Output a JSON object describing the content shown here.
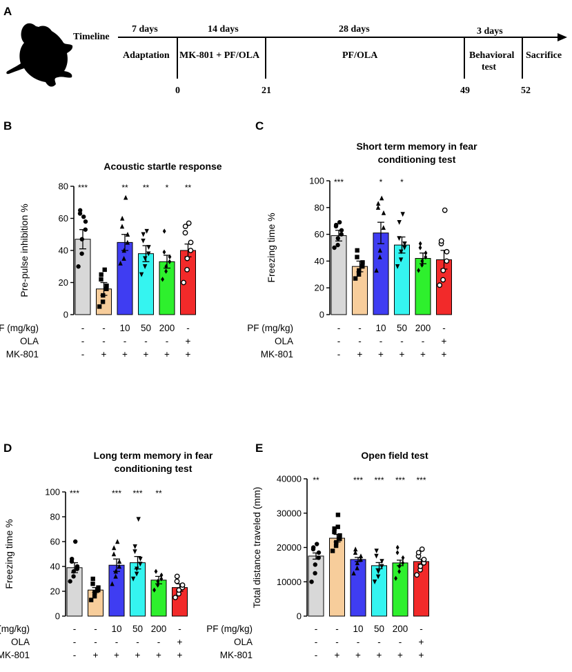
{
  "timeline": {
    "panel_label": "A",
    "axis_label": "Timeline",
    "durations": [
      "7   days",
      "14 days",
      "28 days",
      "3 days"
    ],
    "phases": [
      "Adaptation",
      "MK-801 + PF/OLA",
      "PF/OLA",
      "Behavioral",
      "test",
      "Sacrifice"
    ],
    "day_marks": [
      "0",
      "21",
      "49",
      "52"
    ]
  },
  "colors": {
    "group_fills": [
      "#d8d8d8",
      "#f7cd9b",
      "#3f3df2",
      "#35f4f0",
      "#2ef02d",
      "#f22a2a"
    ],
    "ink": "#000000"
  },
  "treatment_rows": {
    "labels": [
      "PF (mg/kg)",
      "OLA",
      "MK-801"
    ],
    "values": [
      [
        "-",
        "-",
        "10",
        "50",
        "200",
        "-"
      ],
      [
        "-",
        "-",
        "-",
        "-",
        "-",
        "+"
      ],
      [
        "-",
        "+",
        "+",
        "+",
        "+",
        "+"
      ]
    ]
  },
  "chart_data": [
    {
      "panel": "B",
      "type": "bar",
      "title": "Acoustic startle response",
      "ylabel": "Pre-pulse inhibition %",
      "ylim": [
        0,
        80
      ],
      "yticks": [
        "0",
        "20",
        "40",
        "60",
        "80"
      ],
      "values": [
        47,
        16,
        45,
        38,
        33,
        40
      ],
      "errors": [
        6,
        4,
        5,
        5,
        4,
        4
      ],
      "significance": [
        "***",
        "",
        "**",
        "**",
        "*",
        "**"
      ],
      "points": [
        [
          30,
          38,
          47,
          53,
          58,
          63,
          65,
          61
        ],
        [
          5,
          8,
          12,
          16,
          18,
          22,
          25,
          28
        ],
        [
          32,
          35,
          40,
          45,
          50,
          55,
          60,
          73
        ],
        [
          25,
          30,
          35,
          38,
          42,
          46,
          50,
          52
        ],
        [
          22,
          27,
          30,
          33,
          36,
          39,
          52
        ],
        [
          20,
          28,
          35,
          40,
          45,
          51,
          55,
          57
        ]
      ]
    },
    {
      "panel": "C",
      "type": "bar",
      "title": "Short term memory in fear",
      "title2": "conditioning test",
      "ylabel": "Freezing time %",
      "ylim": [
        0,
        100
      ],
      "yticks": [
        "0",
        "20",
        "40",
        "60",
        "80",
        "100"
      ],
      "values": [
        59,
        36,
        61,
        52,
        42,
        41
      ],
      "errors": [
        4,
        4,
        8,
        6,
        4,
        7
      ],
      "significance": [
        "***",
        "",
        "*",
        "*",
        "",
        ""
      ],
      "points": [
        [
          50,
          52,
          57,
          60,
          63,
          66,
          67,
          69
        ],
        [
          27,
          30,
          33,
          36,
          39,
          43,
          48
        ],
        [
          33,
          43,
          48,
          65,
          76,
          80,
          83,
          87
        ],
        [
          36,
          41,
          47,
          50,
          53,
          57,
          69,
          75
        ],
        [
          33,
          37,
          40,
          43,
          46,
          50,
          53
        ],
        [
          22,
          26,
          33,
          40,
          47,
          53,
          55,
          78
        ]
      ]
    },
    {
      "panel": "D",
      "type": "bar",
      "title": "Long term memory in fear",
      "title2": "conditioning test",
      "ylabel": "Freezing time %",
      "ylim": [
        0,
        100
      ],
      "yticks": [
        "0",
        "20",
        "40",
        "60",
        "80",
        "100"
      ],
      "values": [
        39,
        21,
        41,
        43,
        29,
        23
      ],
      "errors": [
        4,
        2,
        5,
        5,
        3,
        3
      ],
      "significance": [
        "***",
        "",
        "***",
        "***",
        "**",
        ""
      ],
      "points": [
        [
          28,
          32,
          36,
          38,
          40,
          44,
          46,
          60
        ],
        [
          13,
          16,
          19,
          21,
          23,
          26,
          30
        ],
        [
          26,
          32,
          36,
          40,
          44,
          50,
          55,
          60
        ],
        [
          30,
          34,
          38,
          42,
          46,
          52,
          56,
          78
        ],
        [
          21,
          25,
          28,
          30,
          33,
          36
        ],
        [
          15,
          18,
          21,
          23,
          25,
          28,
          32
        ]
      ]
    },
    {
      "panel": "E",
      "type": "bar",
      "title": "Open field test",
      "ylabel": "Total distance traveled (mm)",
      "ylim": [
        0,
        40000
      ],
      "yticks": [
        "0",
        "10000",
        "20000",
        "30000",
        "40000"
      ],
      "values": [
        17500,
        22700,
        16500,
        14700,
        15500,
        15900
      ],
      "errors": [
        900,
        1100,
        600,
        900,
        800,
        700
      ],
      "significance": [
        "**",
        "",
        "***",
        "***",
        "***",
        "***"
      ],
      "points": [
        [
          10000,
          12500,
          15000,
          17000,
          18500,
          19500,
          20000,
          21000
        ],
        [
          19000,
          20500,
          21500,
          22500,
          23500,
          24500,
          25500,
          26000,
          29500
        ],
        [
          12500,
          14000,
          15500,
          16500,
          17500,
          18500,
          19500
        ],
        [
          10000,
          11500,
          13000,
          14500,
          16000,
          17500,
          19000
        ],
        [
          11000,
          13000,
          14500,
          15500,
          17000,
          18500,
          20000
        ],
        [
          12000,
          13500,
          14500,
          15500,
          16500,
          17500,
          18500,
          19500
        ]
      ]
    }
  ]
}
